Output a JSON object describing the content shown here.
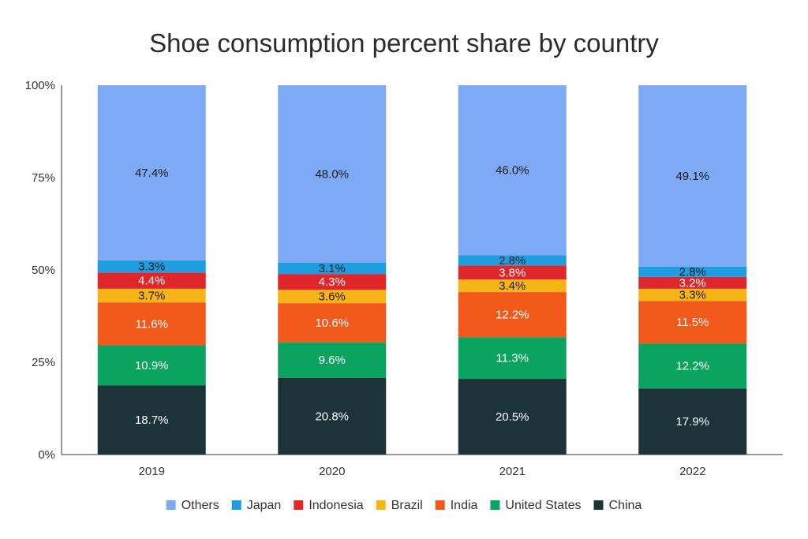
{
  "chart_data": {
    "type": "bar",
    "stacked": true,
    "title": "Shoe consumption percent share by country",
    "xlabel": "",
    "ylabel": "",
    "categories": [
      "2019",
      "2020",
      "2021",
      "2022"
    ],
    "ylim": [
      0,
      100
    ],
    "yticks": [
      "0%",
      "25%",
      "50%",
      "75%",
      "100%"
    ],
    "legend_position": "bottom",
    "legend_order": [
      "Others",
      "Japan",
      "Indonesia",
      "Brazil",
      "India",
      "United States",
      "China"
    ],
    "series": [
      {
        "name": "China",
        "color": "#1c3339",
        "label_color": "#ffffff",
        "values": [
          18.7,
          20.8,
          20.5,
          17.9
        ],
        "labels": [
          "18.7%",
          "20.8%",
          "20.5%",
          "17.9%"
        ]
      },
      {
        "name": "United States",
        "color": "#0ba360",
        "label_color": "#ffffff",
        "values": [
          10.9,
          9.6,
          11.3,
          12.2
        ],
        "labels": [
          "10.9%",
          "9.6%",
          "11.3%",
          "12.2%"
        ]
      },
      {
        "name": "India",
        "color": "#f2591a",
        "label_color": "#ffffff",
        "values": [
          11.6,
          10.6,
          12.2,
          11.5
        ],
        "labels": [
          "11.6%",
          "10.6%",
          "12.2%",
          "11.5%"
        ]
      },
      {
        "name": "Brazil",
        "color": "#f7b416",
        "label_color": "#1a1a1a",
        "values": [
          3.7,
          3.6,
          3.4,
          3.3
        ],
        "labels": [
          "3.7%",
          "3.6%",
          "3.4%",
          "3.3%"
        ]
      },
      {
        "name": "Indonesia",
        "color": "#e0262b",
        "label_color": "#ffffff",
        "values": [
          4.4,
          4.3,
          3.8,
          3.2
        ],
        "labels": [
          "4.4%",
          "4.3%",
          "3.8%",
          "3.2%"
        ]
      },
      {
        "name": "Japan",
        "color": "#1e9de0",
        "label_color": "#1a1a1a",
        "values": [
          3.3,
          3.1,
          2.8,
          2.8
        ],
        "labels": [
          "3.3%",
          "3.1%",
          "2.8%",
          "2.8%"
        ]
      },
      {
        "name": "Others",
        "color": "#7eaaf5",
        "label_color": "#1a1a1a",
        "values": [
          47.4,
          48.0,
          46.0,
          49.1
        ],
        "labels": [
          "47.4%",
          "48.0%",
          "46.0%",
          "49.1%"
        ]
      }
    ]
  }
}
